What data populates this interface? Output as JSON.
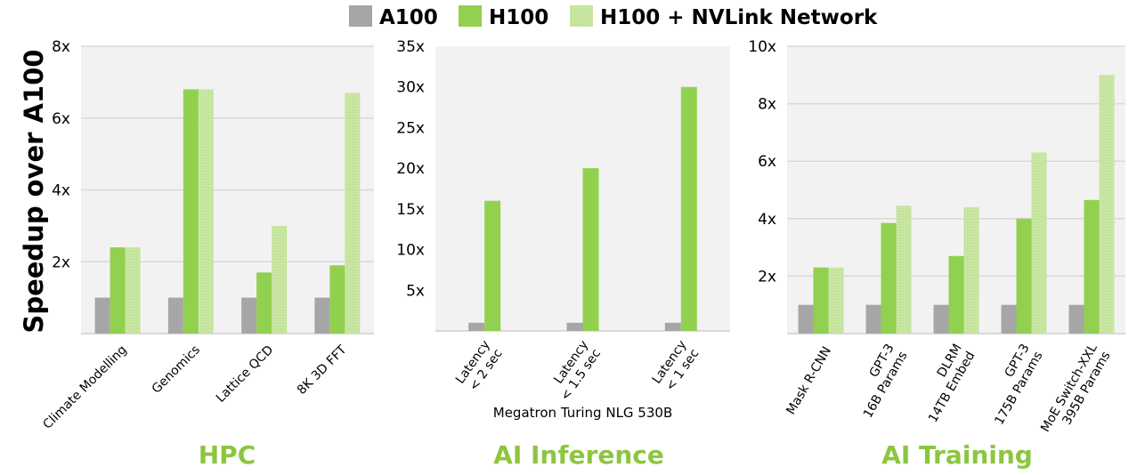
{
  "legend": [
    "A100",
    "H100",
    "H100 + NVLink Network"
  ],
  "colors": {
    "A100": "#a6a6a6",
    "H100": "#92d050",
    "H100 + NVLink Network": "#c9e6a3",
    "panel_title": "#8cc63f",
    "plot_bg": "#f2f2f2"
  },
  "ylabel": "Speedup over A100",
  "chart_data": [
    {
      "type": "bar",
      "title": "HPC",
      "ylim": [
        0,
        8
      ],
      "ticks": [
        "2x",
        "4x",
        "6x",
        "8x"
      ],
      "tick_values": [
        2,
        4,
        6,
        8
      ],
      "grid": true,
      "categories": [
        [
          "Climate Modelling"
        ],
        [
          "Genomics"
        ],
        [
          "Lattice QCD"
        ],
        [
          "8K 3D FFT"
        ]
      ],
      "series": [
        {
          "name": "A100",
          "values": [
            1,
            1,
            1,
            1
          ]
        },
        {
          "name": "H100",
          "values": [
            2.4,
            6.8,
            1.7,
            1.9
          ]
        },
        {
          "name": "H100 + NVLink Network",
          "values": [
            2.4,
            6.8,
            3.0,
            6.7
          ]
        }
      ]
    },
    {
      "type": "bar",
      "title": "AI Inference",
      "xlabel": "Megatron Turing NLG 530B",
      "ylim": [
        0,
        35
      ],
      "ticks": [
        "5x",
        "10x",
        "15x",
        "20x",
        "25x",
        "30x",
        "35x"
      ],
      "tick_values": [
        5,
        10,
        15,
        20,
        25,
        30,
        35
      ],
      "grid": false,
      "categories": [
        [
          "Latency",
          "< 2 sec"
        ],
        [
          "Latency",
          "< 1.5 sec"
        ],
        [
          "Latency",
          "< 1 sec"
        ]
      ],
      "series": [
        {
          "name": "A100",
          "values": [
            1,
            1,
            1
          ]
        },
        {
          "name": "H100",
          "values": [
            16,
            20,
            30
          ]
        }
      ]
    },
    {
      "type": "bar",
      "title": "AI Training",
      "ylim": [
        0,
        10
      ],
      "ticks": [
        "2x",
        "4x",
        "6x",
        "8x",
        "10x"
      ],
      "tick_values": [
        2,
        4,
        6,
        8,
        10
      ],
      "grid": true,
      "categories": [
        [
          "Mask R-CNN"
        ],
        [
          "GPT-3",
          "16B Params"
        ],
        [
          "DLRM",
          "14TB Embed"
        ],
        [
          "GPT-3",
          "175B Params"
        ],
        [
          "MoE Switch-XXL",
          "395B Params"
        ]
      ],
      "series": [
        {
          "name": "A100",
          "values": [
            1,
            1,
            1,
            1,
            1
          ]
        },
        {
          "name": "H100",
          "values": [
            2.3,
            3.85,
            2.7,
            4.0,
            4.65
          ]
        },
        {
          "name": "H100 + NVLink Network",
          "values": [
            2.3,
            4.45,
            4.4,
            6.3,
            9.0
          ]
        }
      ]
    }
  ]
}
